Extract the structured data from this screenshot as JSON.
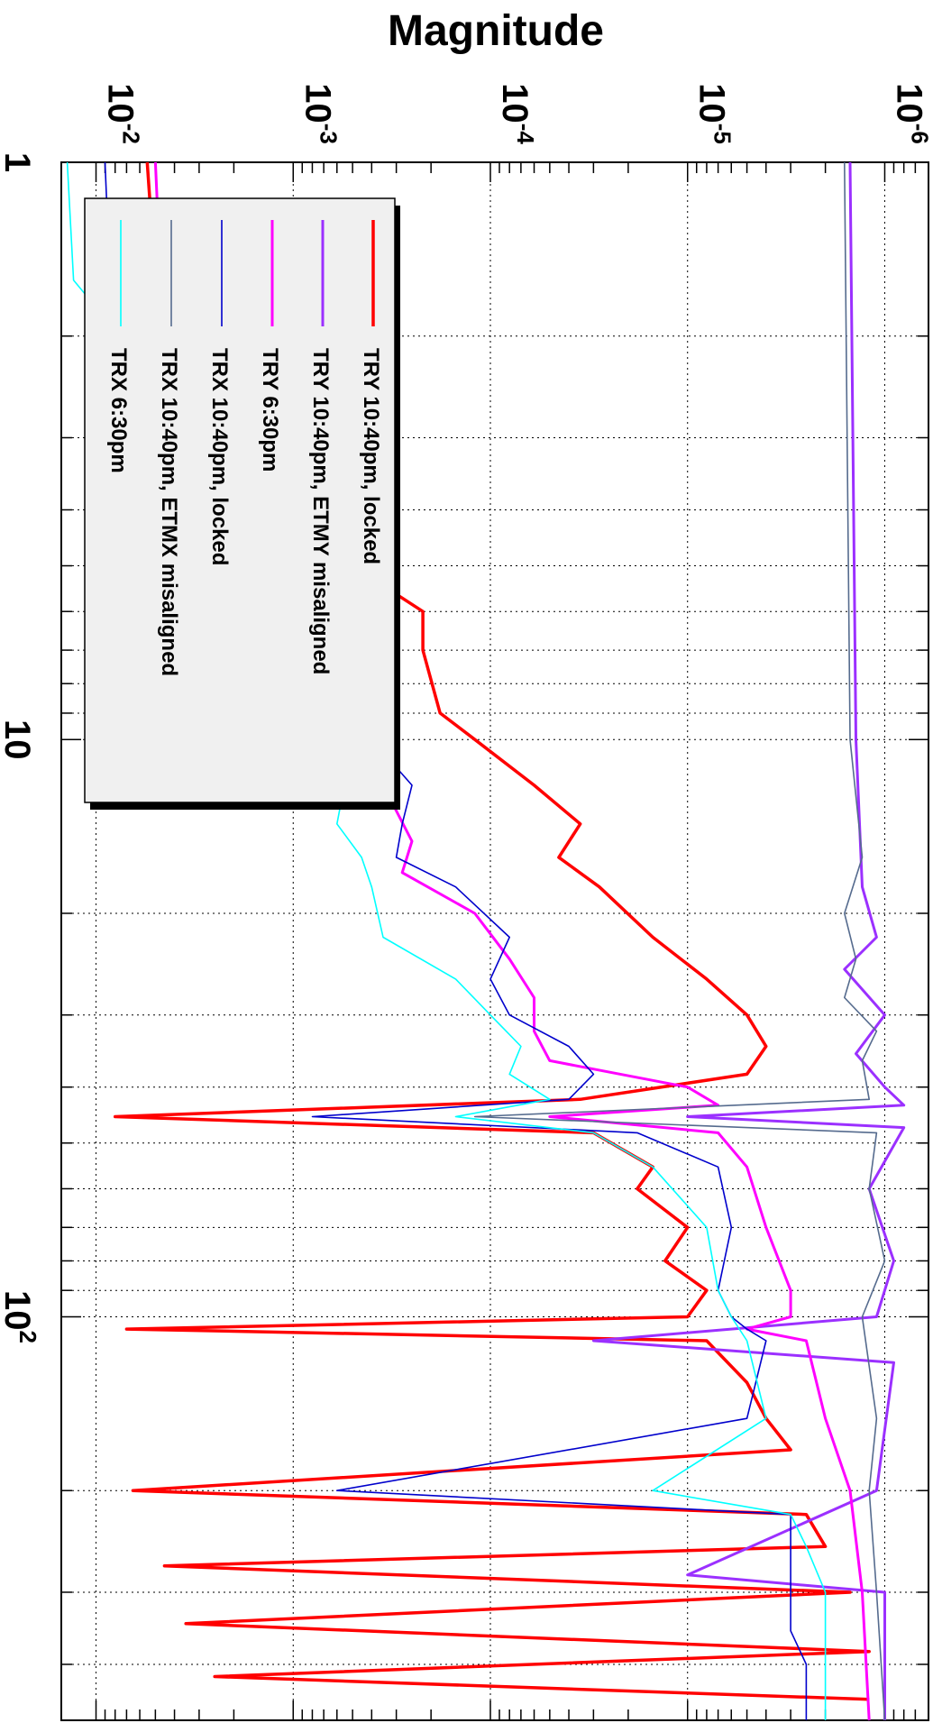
{
  "chart_data": {
    "type": "line",
    "orientation": "rotated-90-clockwise",
    "title": "",
    "xlabel": "",
    "ylabel": "Magnitude",
    "x_scale": "log",
    "y_scale": "log",
    "xlim": [
      1,
      500
    ],
    "ylim": [
      6e-07,
      0.015
    ],
    "x_tick_labels": [
      {
        "value": 1,
        "base": "1",
        "exp": ""
      },
      {
        "value": 10,
        "base": "10",
        "exp": ""
      },
      {
        "value": 100,
        "base": "10",
        "exp": "2"
      }
    ],
    "y_tick_labels": [
      {
        "value": 1e-06,
        "base": "10",
        "exp": "-6"
      },
      {
        "value": 1e-05,
        "base": "10",
        "exp": "-5"
      },
      {
        "value": 0.0001,
        "base": "10",
        "exp": "-4"
      },
      {
        "value": 0.001,
        "base": "10",
        "exp": "-3"
      },
      {
        "value": 0.01,
        "base": "10",
        "exp": "-2"
      }
    ],
    "grid": true,
    "legend_position": "top-left",
    "series": [
      {
        "name": "TRY 10:40pm, locked",
        "color": "#ff0000",
        "width": 3.5,
        "points": [
          [
            1,
            0.0055
          ],
          [
            1.6,
            0.005
          ],
          [
            2.2,
            0.0016
          ],
          [
            3,
            0.0007
          ],
          [
            4,
            0.00035
          ],
          [
            5,
            0.0005
          ],
          [
            6,
            0.00022
          ],
          [
            7,
            0.00022
          ],
          [
            9,
            0.00018
          ],
          [
            10,
            0.00012
          ],
          [
            12,
            6e-05
          ],
          [
            14,
            3.5e-05
          ],
          [
            16,
            4.5e-05
          ],
          [
            18,
            2.8e-05
          ],
          [
            22,
            1.5e-05
          ],
          [
            26,
            8e-06
          ],
          [
            30,
            5e-06
          ],
          [
            34,
            4e-06
          ],
          [
            38,
            5e-06
          ],
          [
            42,
            3.5e-05
          ],
          [
            45,
            0.008
          ],
          [
            48,
            3e-05
          ],
          [
            55,
            1.5e-05
          ],
          [
            60,
            1.8e-05
          ],
          [
            70,
            1e-05
          ],
          [
            80,
            1.3e-05
          ],
          [
            90,
            8e-06
          ],
          [
            100,
            1e-05
          ],
          [
            105,
            0.007
          ],
          [
            110,
            8e-06
          ],
          [
            130,
            5e-06
          ],
          [
            150,
            4e-06
          ],
          [
            170,
            3e-06
          ],
          [
            200,
            0.0065
          ],
          [
            220,
            2.5e-06
          ],
          [
            250,
            2e-06
          ],
          [
            270,
            0.0045
          ],
          [
            300,
            1.5e-06
          ],
          [
            340,
            0.0035
          ],
          [
            380,
            1.2e-06
          ],
          [
            420,
            0.0025
          ],
          [
            460,
            1.2e-06
          ]
        ]
      },
      {
        "name": "TRY 10:40pm, ETMY misaligned",
        "color": "#9b30ff",
        "width": 3.0,
        "points": [
          [
            1,
            1.5e-06
          ],
          [
            10,
            1.4e-06
          ],
          [
            18,
            1.3e-06
          ],
          [
            22,
            1.1e-06
          ],
          [
            25,
            1.6e-06
          ],
          [
            30,
            1e-06
          ],
          [
            35,
            1.4e-06
          ],
          [
            40,
            1e-06
          ],
          [
            43,
            8e-07
          ],
          [
            45,
            1e-05
          ],
          [
            47,
            8e-07
          ],
          [
            60,
            1.2e-06
          ],
          [
            80,
            9e-07
          ],
          [
            100,
            1.1e-06
          ],
          [
            110,
            3e-05
          ],
          [
            120,
            9e-07
          ],
          [
            200,
            1.1e-06
          ],
          [
            280,
            1e-05
          ],
          [
            300,
            1e-06
          ],
          [
            500,
            1e-06
          ]
        ]
      },
      {
        "name": "TRY 6:30pm",
        "color": "#ff00ff",
        "width": 3.0,
        "points": [
          [
            1,
            0.005
          ],
          [
            1.6,
            0.0047
          ],
          [
            2.2,
            0.0022
          ],
          [
            3,
            0.001
          ],
          [
            4,
            0.0007
          ],
          [
            5,
            0.00065
          ],
          [
            6,
            0.0006
          ],
          [
            7,
            0.00055
          ],
          [
            9,
            0.0005
          ],
          [
            10,
            0.0005
          ],
          [
            12,
            0.00035
          ],
          [
            15,
            0.00025
          ],
          [
            17,
            0.00028
          ],
          [
            20,
            0.00012
          ],
          [
            24,
            8e-05
          ],
          [
            28,
            6e-05
          ],
          [
            32,
            6e-05
          ],
          [
            36,
            5e-05
          ],
          [
            40,
            1e-05
          ],
          [
            43,
            7e-06
          ],
          [
            45,
            5e-05
          ],
          [
            48,
            7e-06
          ],
          [
            55,
            5e-06
          ],
          [
            70,
            4e-06
          ],
          [
            90,
            3e-06
          ],
          [
            100,
            3e-06
          ],
          [
            105,
            5e-06
          ],
          [
            110,
            2.5e-06
          ],
          [
            150,
            2e-06
          ],
          [
            200,
            1.5e-06
          ],
          [
            300,
            1.3e-06
          ],
          [
            500,
            1.2e-06
          ]
        ]
      },
      {
        "name": "TRX 10:40pm, locked",
        "color": "#0000cc",
        "width": 1.6,
        "points": [
          [
            1,
            0.009
          ],
          [
            1.6,
            0.0085
          ],
          [
            2.2,
            0.003
          ],
          [
            3,
            0.001
          ],
          [
            4,
            0.00055
          ],
          [
            5,
            0.00065
          ],
          [
            6,
            0.0005
          ],
          [
            7,
            0.0006
          ],
          [
            9,
            0.0004
          ],
          [
            10,
            0.0004
          ],
          [
            12,
            0.00025
          ],
          [
            14,
            0.00028
          ],
          [
            16,
            0.0003
          ],
          [
            18,
            0.00015
          ],
          [
            22,
            8e-05
          ],
          [
            26,
            0.0001
          ],
          [
            30,
            8e-05
          ],
          [
            34,
            4e-05
          ],
          [
            38,
            3e-05
          ],
          [
            42,
            4e-05
          ],
          [
            45,
            0.0008
          ],
          [
            48,
            1.8e-05
          ],
          [
            55,
            7e-06
          ],
          [
            70,
            6e-06
          ],
          [
            90,
            7e-06
          ],
          [
            100,
            6e-06
          ],
          [
            105,
            5e-06
          ],
          [
            110,
            4e-06
          ],
          [
            150,
            5e-06
          ],
          [
            200,
            0.0006
          ],
          [
            220,
            3e-06
          ],
          [
            280,
            3e-06
          ],
          [
            350,
            3e-06
          ],
          [
            400,
            2.5e-06
          ],
          [
            500,
            2.5e-06
          ]
        ]
      },
      {
        "name": "TRX 10:40pm, ETMX misaligned",
        "color": "#556b8e",
        "width": 1.6,
        "points": [
          [
            1,
            1.6e-06
          ],
          [
            10,
            1.5e-06
          ],
          [
            16,
            1.3e-06
          ],
          [
            20,
            1.6e-06
          ],
          [
            24,
            1.4e-06
          ],
          [
            28,
            1.6e-06
          ],
          [
            32,
            1.1e-06
          ],
          [
            36,
            1.3e-06
          ],
          [
            42,
            1.2e-06
          ],
          [
            45,
            0.00012
          ],
          [
            48,
            1.1e-06
          ],
          [
            60,
            1.2e-06
          ],
          [
            80,
            1e-06
          ],
          [
            100,
            1.3e-06
          ],
          [
            150,
            1.1e-06
          ],
          [
            200,
            1.2e-06
          ],
          [
            300,
            1.1e-06
          ],
          [
            500,
            1e-06
          ]
        ]
      },
      {
        "name": "TRX 6:30pm",
        "color": "#00ffff",
        "width": 1.6,
        "points": [
          [
            1,
            0.014
          ],
          [
            1.6,
            0.013
          ],
          [
            2.2,
            0.006
          ],
          [
            3,
            0.0025
          ],
          [
            4,
            0.0015
          ],
          [
            5,
            0.0012
          ],
          [
            6,
            0.0012
          ],
          [
            7,
            0.001
          ],
          [
            9,
            0.0009
          ],
          [
            10,
            0.0008
          ],
          [
            12,
            0.00055
          ],
          [
            14,
            0.0006
          ],
          [
            16,
            0.00045
          ],
          [
            18,
            0.0004
          ],
          [
            22,
            0.00035
          ],
          [
            26,
            0.00015
          ],
          [
            30,
            0.0001
          ],
          [
            34,
            7e-05
          ],
          [
            38,
            8e-05
          ],
          [
            42,
            5e-05
          ],
          [
            45,
            0.00015
          ],
          [
            48,
            3e-05
          ],
          [
            55,
            1.5e-05
          ],
          [
            70,
            8e-06
          ],
          [
            90,
            7e-06
          ],
          [
            100,
            6e-06
          ],
          [
            110,
            5e-06
          ],
          [
            150,
            4e-06
          ],
          [
            200,
            1.5e-05
          ],
          [
            220,
            3e-06
          ],
          [
            250,
            2.5e-06
          ],
          [
            300,
            2e-06
          ],
          [
            400,
            2e-06
          ],
          [
            500,
            2e-06
          ]
        ]
      }
    ]
  }
}
